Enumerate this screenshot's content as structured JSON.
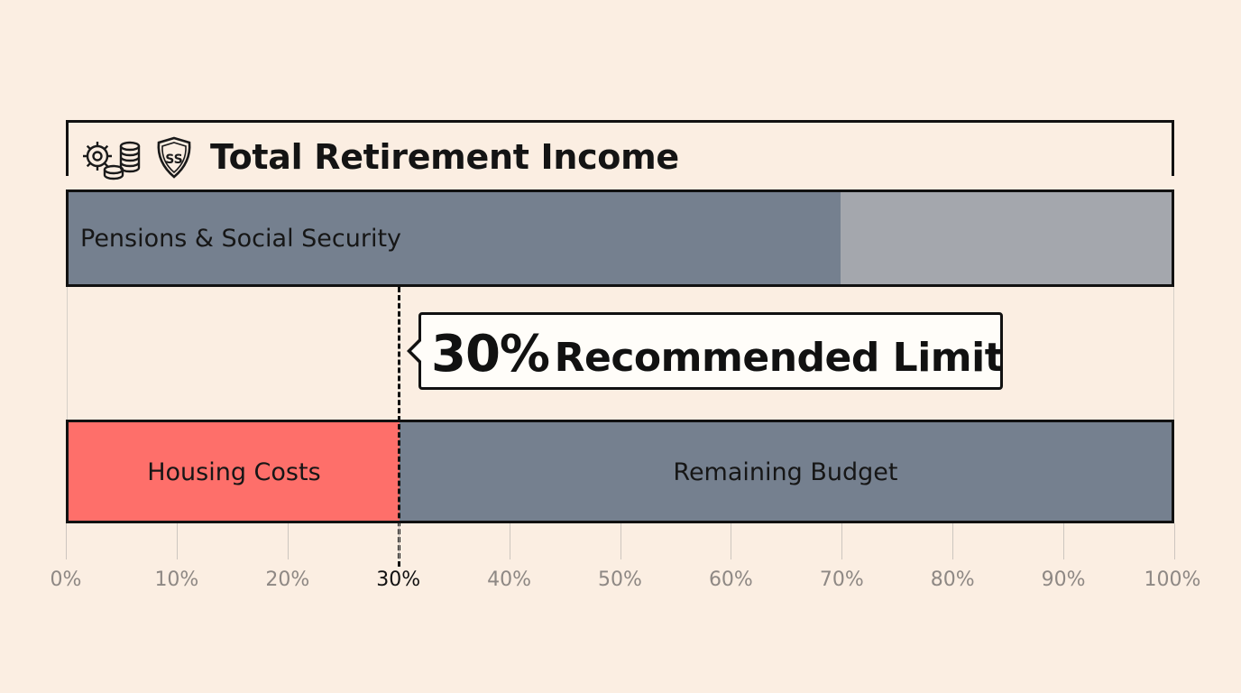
{
  "header": {
    "title": "Total Retirement Income",
    "icons": [
      "gear-coins-icon",
      "social-security-shield-icon"
    ],
    "shield_text": "SS"
  },
  "chart_data": {
    "type": "bar",
    "orientation": "horizontal",
    "stacked": true,
    "x_ticks": [
      "0%",
      "10%",
      "20%",
      "30%",
      "40%",
      "50%",
      "60%",
      "70%",
      "80%",
      "90%",
      "100%"
    ],
    "xlim": [
      0,
      100
    ],
    "bars": [
      {
        "name": "Total Retirement Income",
        "segments": [
          {
            "label": "Pensions & Social Security",
            "value": 70,
            "color": "#75808f"
          },
          {
            "label": "",
            "value": 30,
            "color": "#a4a7ad"
          }
        ]
      },
      {
        "name": "",
        "segments": [
          {
            "label": "Housing Costs",
            "value": 30,
            "color": "#fe6f6a"
          },
          {
            "label": "Remaining Budget",
            "value": 70,
            "color": "#75808f"
          }
        ]
      }
    ],
    "threshold": {
      "value": 30,
      "label_pct": "30%",
      "label_text": "Recommended Limit",
      "highlighted_tick": "30%"
    },
    "grid": true
  }
}
